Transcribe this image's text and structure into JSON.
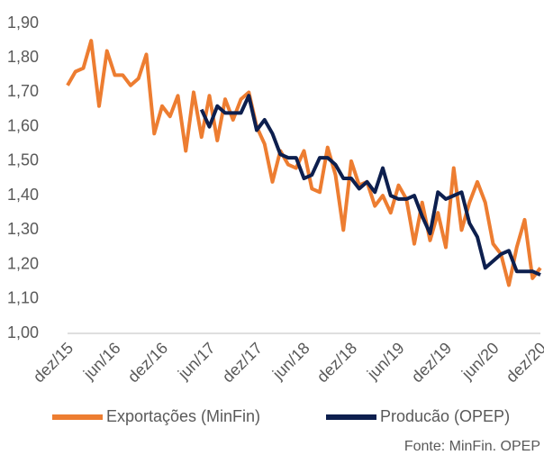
{
  "chart_data": {
    "type": "line",
    "categories": [
      "dez/15",
      null,
      null,
      null,
      null,
      null,
      "jun/16",
      null,
      null,
      null,
      null,
      null,
      "dez/16",
      null,
      null,
      null,
      null,
      null,
      "jun/17",
      null,
      null,
      null,
      null,
      null,
      "dez/17",
      null,
      null,
      null,
      null,
      null,
      "jun/18",
      null,
      null,
      null,
      null,
      null,
      "dez/18",
      null,
      null,
      null,
      null,
      null,
      "jun/19",
      null,
      null,
      null,
      null,
      null,
      "dez/19",
      null,
      null,
      null,
      null,
      null,
      "jun/20",
      null,
      null,
      null,
      null,
      null,
      "dez/20"
    ],
    "series": [
      {
        "name": "Exportações (MinFin)",
        "color": "#ed7d31",
        "values": [
          1.72,
          1.76,
          1.77,
          1.85,
          1.66,
          1.82,
          1.75,
          1.75,
          1.72,
          1.74,
          1.81,
          1.58,
          1.66,
          1.63,
          1.69,
          1.53,
          1.7,
          1.57,
          1.69,
          1.56,
          1.68,
          1.62,
          1.68,
          1.7,
          1.6,
          1.55,
          1.44,
          1.53,
          1.49,
          1.48,
          1.53,
          1.42,
          1.41,
          1.54,
          1.46,
          1.3,
          1.5,
          1.43,
          1.44,
          1.37,
          1.4,
          1.35,
          1.43,
          1.39,
          1.26,
          1.38,
          1.27,
          1.35,
          1.25,
          1.48,
          1.3,
          1.38,
          1.44,
          1.38,
          1.26,
          1.23,
          1.14,
          1.25,
          1.33,
          1.16,
          1.19
        ]
      },
      {
        "name": "Producão (OPEP)",
        "color": "#0d1f4e",
        "values": [
          null,
          null,
          null,
          null,
          null,
          null,
          null,
          null,
          null,
          null,
          null,
          null,
          null,
          null,
          null,
          null,
          null,
          1.65,
          1.6,
          1.66,
          1.64,
          1.64,
          1.64,
          1.69,
          1.59,
          1.62,
          1.58,
          1.52,
          1.51,
          1.51,
          1.45,
          1.46,
          1.51,
          1.51,
          1.49,
          1.45,
          1.45,
          1.42,
          1.44,
          1.41,
          1.48,
          1.4,
          1.39,
          1.39,
          1.4,
          1.34,
          1.29,
          1.41,
          1.39,
          1.4,
          1.41,
          1.32,
          1.28,
          1.19,
          1.21,
          1.23,
          1.24,
          1.18,
          1.18,
          1.18,
          1.17
        ]
      }
    ],
    "ylim": [
      1.0,
      1.9
    ],
    "yticks": [
      {
        "value": 1.0,
        "label": "1,00"
      },
      {
        "value": 1.1,
        "label": "1,10"
      },
      {
        "value": 1.2,
        "label": "1,20"
      },
      {
        "value": 1.3,
        "label": "1,30"
      },
      {
        "value": 1.4,
        "label": "1,40"
      },
      {
        "value": 1.5,
        "label": "1,50"
      },
      {
        "value": 1.6,
        "label": "1,60"
      },
      {
        "value": 1.7,
        "label": "1,70"
      },
      {
        "value": 1.8,
        "label": "1,80"
      },
      {
        "value": 1.9,
        "label": "1,90"
      }
    ],
    "grid": false,
    "legend": "bottom",
    "source": "Fonte: MinFin. OPEP"
  }
}
